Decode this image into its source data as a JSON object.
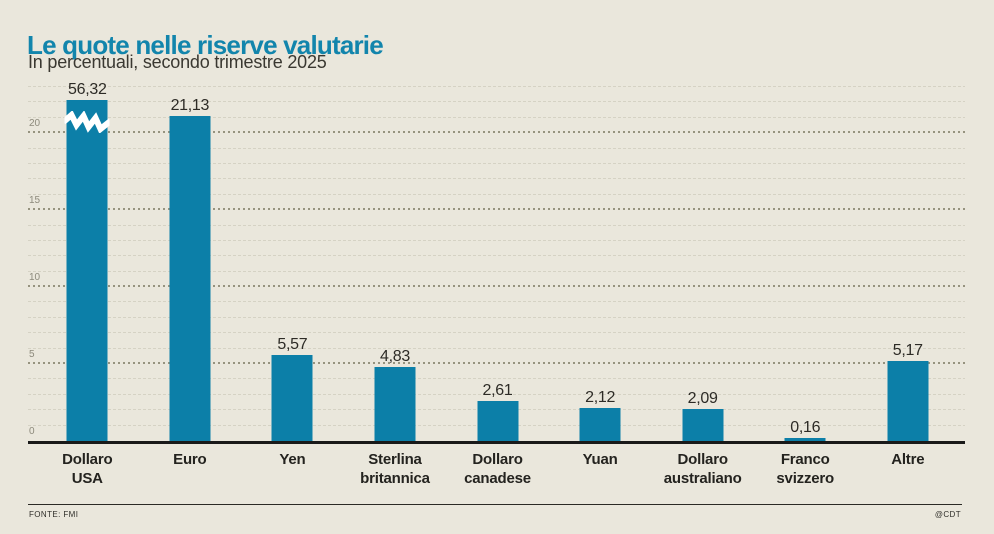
{
  "title": "Le quote nelle riserve valutarie",
  "subtitle": "In percentuali, secondo trimestre 2025",
  "footer": {
    "source": "FONTE: FMI",
    "credit": "@CDT"
  },
  "colors": {
    "background": "#eae7dc",
    "bar": "#0c7fa8",
    "title": "#1285ac",
    "axis_line": "#1a1a19",
    "grid_major": "#96937f",
    "grid_minor": "#d5d2c4",
    "tick_label": "#8d8a7c",
    "value_label": "#2d2b26",
    "break_band": "#ffffff"
  },
  "chart_data": {
    "type": "bar",
    "title": "Le quote nelle riserve valutarie",
    "subtitle": "In percentuali, secondo trimestre 2025",
    "xlabel": "",
    "ylabel": "",
    "categories": [
      "Dollaro USA",
      "Euro",
      "Yen",
      "Sterlina britannica",
      "Dollaro canadese",
      "Yuan",
      "Dollaro australiano",
      "Franco svizzero",
      "Altre"
    ],
    "category_lines": [
      [
        "Dollaro",
        "USA"
      ],
      [
        "Euro"
      ],
      [
        "Yen"
      ],
      [
        "Sterlina",
        "britannica"
      ],
      [
        "Dollaro",
        "canadese"
      ],
      [
        "Yuan"
      ],
      [
        "Dollaro",
        "australiano"
      ],
      [
        "Franco",
        "svizzero"
      ],
      [
        "Altre"
      ]
    ],
    "values": [
      56.32,
      21.13,
      5.57,
      4.83,
      2.61,
      2.12,
      2.09,
      0.16,
      5.17
    ],
    "value_labels": [
      "56,32",
      "21,13",
      "5,57",
      "4,83",
      "2,61",
      "2,12",
      "2,09",
      "0,16",
      "5,17"
    ],
    "y_ticks": [
      0,
      5,
      10,
      15,
      20
    ],
    "ylim": [
      0,
      23
    ],
    "grid": "dotted horizontal, minor every 1 unit, major every 5 units",
    "legend": "none",
    "axis_break": {
      "bar_index": 0,
      "display_cap": 22.15,
      "note": "Dollaro USA bar truncated with zigzag break symbol"
    }
  }
}
